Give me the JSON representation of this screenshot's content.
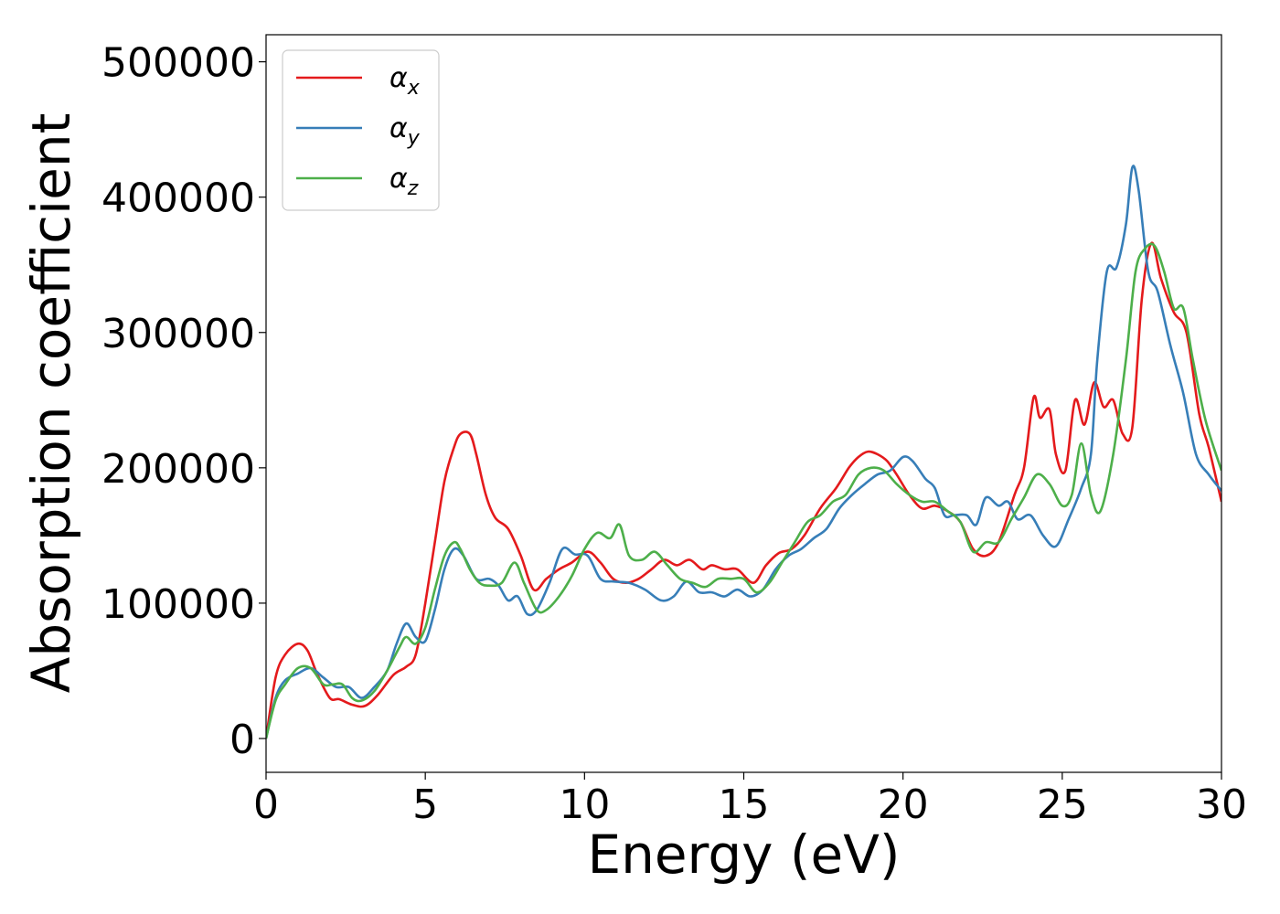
{
  "chart_data": {
    "type": "line",
    "xlabel": "Energy (eV)",
    "ylabel": "Absorption coefficient",
    "xlim": [
      0,
      30
    ],
    "ylim": [
      -25000,
      520000
    ],
    "xticks": [
      0,
      5,
      10,
      15,
      20,
      25,
      30
    ],
    "yticks": [
      0,
      100000,
      200000,
      300000,
      400000,
      500000
    ],
    "grid": false,
    "legend_position": "top-left",
    "series": [
      {
        "name": "αx",
        "symbol": "α",
        "subscript": "x",
        "color": "#e41a1c",
        "x": [
          0,
          0.3,
          0.6,
          1.0,
          1.3,
          1.6,
          2.0,
          2.3,
          2.7,
          3.1,
          3.5,
          4.0,
          4.4,
          4.7,
          5.0,
          5.3,
          5.6,
          5.9,
          6.1,
          6.4,
          6.6,
          6.9,
          7.2,
          7.6,
          8.0,
          8.4,
          8.8,
          9.2,
          9.6,
          10.1,
          10.5,
          10.9,
          11.3,
          11.7,
          12.1,
          12.5,
          12.9,
          13.3,
          13.7,
          14.0,
          14.4,
          14.8,
          15.3,
          15.7,
          16.1,
          16.5,
          16.9,
          17.4,
          17.9,
          18.3,
          18.6,
          18.9,
          19.2,
          19.5,
          19.8,
          20.2,
          20.6,
          21.0,
          21.4,
          21.8,
          22.2,
          22.6,
          23.0,
          23.5,
          23.8,
          24.1,
          24.3,
          24.6,
          24.8,
          25.1,
          25.4,
          25.7,
          26.0,
          26.3,
          26.6,
          26.9,
          27.2,
          27.5,
          27.8,
          28.1,
          28.5,
          28.9,
          29.3,
          29.6,
          30.0
        ],
        "y": [
          0,
          45000,
          62000,
          70000,
          65000,
          48000,
          30000,
          29000,
          25000,
          24000,
          32000,
          47000,
          53000,
          62000,
          100000,
          145000,
          190000,
          215000,
          225000,
          225000,
          210000,
          180000,
          163000,
          155000,
          135000,
          110000,
          118000,
          125000,
          130000,
          138000,
          130000,
          118000,
          115000,
          118000,
          125000,
          132000,
          128000,
          132000,
          125000,
          128000,
          125000,
          125000,
          115000,
          128000,
          137000,
          140000,
          150000,
          170000,
          185000,
          200000,
          208000,
          212000,
          210000,
          205000,
          195000,
          180000,
          170000,
          172000,
          168000,
          160000,
          140000,
          135000,
          145000,
          180000,
          200000,
          252000,
          237000,
          243000,
          210000,
          198000,
          250000,
          232000,
          263000,
          245000,
          250000,
          225000,
          230000,
          325000,
          366000,
          340000,
          315000,
          300000,
          240000,
          215000,
          175000
        ]
      },
      {
        "name": "αy",
        "symbol": "α",
        "subscript": "y",
        "color": "#377eb8",
        "x": [
          0,
          0.3,
          0.6,
          1.0,
          1.4,
          1.8,
          2.2,
          2.6,
          3.0,
          3.4,
          3.8,
          4.1,
          4.4,
          4.7,
          5.0,
          5.3,
          5.6,
          5.9,
          6.2,
          6.6,
          7.0,
          7.3,
          7.6,
          7.9,
          8.2,
          8.5,
          8.9,
          9.3,
          9.7,
          10.1,
          10.5,
          10.9,
          11.4,
          11.9,
          12.4,
          12.8,
          13.2,
          13.6,
          14.0,
          14.4,
          14.8,
          15.2,
          15.6,
          16.0,
          16.4,
          16.8,
          17.2,
          17.6,
          18.0,
          18.4,
          18.8,
          19.2,
          19.6,
          20.0,
          20.3,
          20.7,
          21.0,
          21.3,
          21.6,
          22.0,
          22.3,
          22.6,
          23.0,
          23.3,
          23.6,
          24.0,
          24.4,
          24.8,
          25.2,
          25.6,
          25.9,
          26.1,
          26.4,
          26.7,
          27.0,
          27.2,
          27.4,
          27.7,
          28.0,
          28.4,
          28.8,
          29.2,
          29.6,
          30.0
        ],
        "y": [
          0,
          30000,
          43000,
          48000,
          52000,
          45000,
          38000,
          38000,
          30000,
          38000,
          50000,
          70000,
          85000,
          75000,
          72000,
          95000,
          125000,
          140000,
          135000,
          118000,
          118000,
          113000,
          102000,
          105000,
          92000,
          95000,
          115000,
          140000,
          136000,
          135000,
          118000,
          116000,
          115000,
          110000,
          102000,
          105000,
          116000,
          108000,
          108000,
          105000,
          110000,
          105000,
          110000,
          125000,
          135000,
          140000,
          148000,
          155000,
          170000,
          180000,
          188000,
          195000,
          198000,
          208000,
          205000,
          192000,
          185000,
          165000,
          165000,
          165000,
          158000,
          178000,
          172000,
          175000,
          162000,
          165000,
          150000,
          142000,
          162000,
          185000,
          210000,
          280000,
          345000,
          348000,
          380000,
          422000,
          405000,
          345000,
          330000,
          290000,
          255000,
          210000,
          195000,
          183000
        ]
      },
      {
        "name": "αz",
        "symbol": "α",
        "subscript": "z",
        "color": "#4daf4a",
        "x": [
          0,
          0.3,
          0.6,
          1.0,
          1.4,
          1.8,
          2.1,
          2.4,
          2.7,
          3.0,
          3.4,
          3.8,
          4.2,
          4.4,
          4.7,
          5.0,
          5.3,
          5.6,
          5.9,
          6.1,
          6.4,
          6.7,
          7.0,
          7.4,
          7.8,
          8.1,
          8.5,
          8.8,
          9.2,
          9.6,
          10.0,
          10.4,
          10.8,
          11.1,
          11.4,
          11.8,
          12.2,
          12.6,
          13.0,
          13.4,
          13.8,
          14.2,
          14.6,
          15.0,
          15.4,
          15.8,
          16.2,
          16.6,
          17.0,
          17.4,
          17.8,
          18.2,
          18.6,
          19.0,
          19.4,
          19.8,
          20.2,
          20.6,
          21.0,
          21.4,
          21.8,
          22.2,
          22.6,
          23.0,
          23.4,
          23.8,
          24.2,
          24.6,
          25.0,
          25.3,
          25.6,
          25.9,
          26.2,
          26.6,
          27.0,
          27.3,
          27.6,
          27.9,
          28.2,
          28.5,
          28.8,
          29.1,
          29.5,
          30.0
        ],
        "y": [
          0,
          28000,
          40000,
          52000,
          52000,
          40000,
          40000,
          40000,
          30000,
          28000,
          35000,
          50000,
          68000,
          75000,
          70000,
          82000,
          110000,
          135000,
          145000,
          140000,
          125000,
          115000,
          113000,
          115000,
          130000,
          115000,
          95000,
          95000,
          105000,
          120000,
          140000,
          152000,
          148000,
          158000,
          135000,
          132000,
          138000,
          128000,
          118000,
          115000,
          112000,
          118000,
          118000,
          118000,
          108000,
          115000,
          130000,
          145000,
          160000,
          165000,
          175000,
          180000,
          195000,
          200000,
          198000,
          188000,
          180000,
          175000,
          175000,
          168000,
          160000,
          138000,
          145000,
          145000,
          162000,
          178000,
          195000,
          188000,
          172000,
          180000,
          218000,
          180000,
          168000,
          210000,
          280000,
          345000,
          362000,
          364000,
          345000,
          318000,
          318000,
          280000,
          235000,
          198000
        ]
      }
    ]
  }
}
